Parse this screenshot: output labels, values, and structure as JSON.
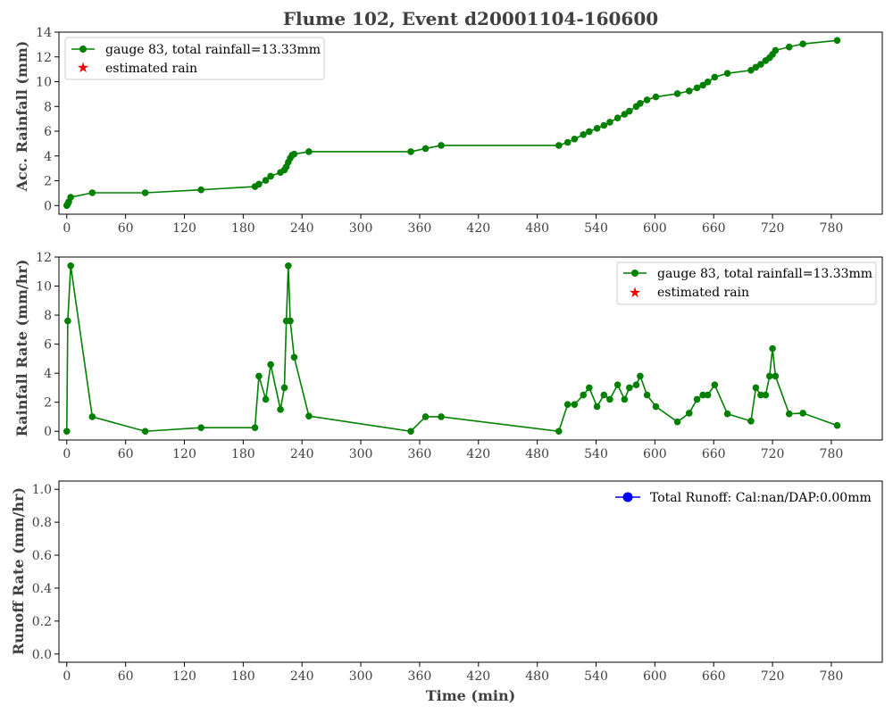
{
  "chart_data": {
    "title": "Flume 102, Event d20001104-160600",
    "xlabel": "Time (min)",
    "x_ticks": [
      0,
      60,
      120,
      180,
      240,
      300,
      360,
      420,
      480,
      540,
      600,
      660,
      720,
      780
    ],
    "colors": {
      "rain": "#008000",
      "estimated": "#ff0000",
      "runoff": "#0000ff"
    },
    "panels": [
      {
        "type": "line",
        "ylabel": "Acc. Rainfall (mm)",
        "xlim": [
          -8,
          832
        ],
        "ylim": [
          -0.7,
          14
        ],
        "y_ticks": [
          0,
          2,
          4,
          6,
          8,
          10,
          12,
          14
        ],
        "legend_position": "upper-left",
        "series": [
          {
            "name": "gauge 83, total rainfall=13.33mm",
            "color": "#008000",
            "marker": "circle",
            "x": [
              0,
              1,
              2,
              4,
              26,
              80,
              137,
              192,
              196,
              203,
              208,
              218,
              222,
              224,
              226,
              228,
              230,
              232,
              247,
              351,
              366,
              382,
              502,
              511,
              518,
              527,
              533,
              541,
              548,
              554,
              562,
              569,
              574,
              581,
              585,
              592,
              601,
              623,
              635,
              643,
              649,
              654,
              661,
              674,
              698,
              703,
              708,
              713,
              717,
              720,
              723,
              737,
              751,
              786
            ],
            "y": [
              0.0,
              0.13,
              0.3,
              0.67,
              1.03,
              1.03,
              1.27,
              1.53,
              1.73,
              2.03,
              2.37,
              2.67,
              2.87,
              3.13,
              3.5,
              3.83,
              4.07,
              4.15,
              4.35,
              4.35,
              4.6,
              4.85,
              4.85,
              5.1,
              5.37,
              5.73,
              5.97,
              6.23,
              6.47,
              6.73,
              7.07,
              7.37,
              7.62,
              8.0,
              8.25,
              8.53,
              8.77,
              9.03,
              9.25,
              9.5,
              9.72,
              9.98,
              10.37,
              10.67,
              10.92,
              11.17,
              11.4,
              11.7,
              11.93,
              12.2,
              12.53,
              12.8,
              13.05,
              13.33
            ]
          },
          {
            "name": "estimated rain",
            "color": "#ff0000",
            "marker": "star",
            "x": [],
            "y": []
          }
        ]
      },
      {
        "type": "line",
        "ylabel": "Rainfall Rate (mm/hr)",
        "xlim": [
          -8,
          832
        ],
        "ylim": [
          -0.6,
          12.0
        ],
        "y_ticks": [
          0,
          2,
          4,
          6,
          8,
          10,
          12
        ],
        "legend_position": "upper-right",
        "series": [
          {
            "name": "gauge 83, total rainfall=13.33mm",
            "color": "#008000",
            "marker": "circle",
            "x": [
              0,
              1,
              4,
              26,
              80,
              137,
              192,
              196,
              203,
              208,
              218,
              222,
              224,
              226,
              228,
              232,
              247,
              351,
              366,
              382,
              502,
              511,
              518,
              527,
              533,
              541,
              548,
              554,
              562,
              569,
              574,
              581,
              585,
              592,
              601,
              623,
              635,
              643,
              649,
              654,
              661,
              674,
              698,
              703,
              708,
              713,
              717,
              720,
              723,
              737,
              751,
              786
            ],
            "y": [
              0.0,
              7.6,
              11.4,
              1.0,
              0.0,
              0.25,
              0.25,
              3.8,
              2.2,
              4.6,
              1.5,
              3.0,
              7.6,
              11.4,
              7.6,
              5.1,
              1.05,
              0.0,
              1.0,
              1.0,
              0.0,
              1.85,
              1.85,
              2.5,
              3.0,
              1.7,
              2.5,
              2.2,
              3.2,
              2.2,
              3.0,
              3.2,
              3.8,
              2.5,
              1.7,
              0.65,
              1.25,
              2.2,
              2.5,
              2.5,
              3.2,
              1.2,
              0.7,
              3.0,
              2.5,
              2.5,
              3.8,
              5.7,
              3.8,
              1.2,
              1.25,
              0.4
            ]
          },
          {
            "name": "estimated rain",
            "color": "#ff0000",
            "marker": "star",
            "x": [],
            "y": []
          }
        ]
      },
      {
        "type": "line",
        "ylabel": "Runoff Rate (mm/hr)",
        "xlim": [
          -8,
          832
        ],
        "ylim": [
          -0.05,
          1.05
        ],
        "y_ticks": [
          0.0,
          0.2,
          0.4,
          0.6,
          0.8,
          1.0
        ],
        "legend_position": "upper-right",
        "series": [
          {
            "name": "Total Runoff: Cal:nan/DAP:0.00mm",
            "color": "#0000ff",
            "marker": "circle",
            "x": [],
            "y": []
          }
        ]
      }
    ]
  }
}
